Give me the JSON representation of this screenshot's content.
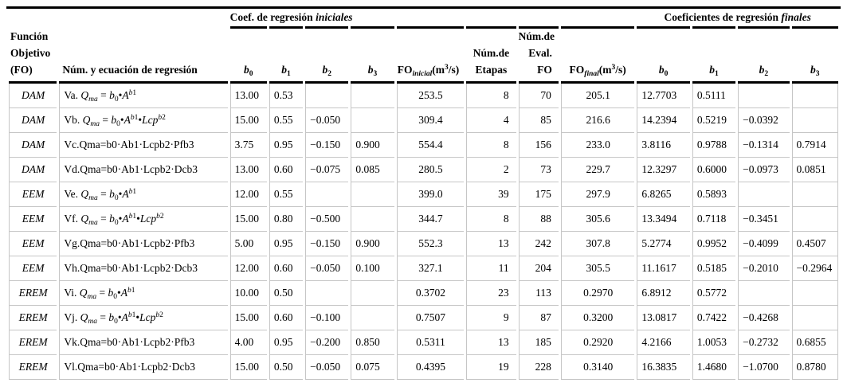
{
  "table": {
    "group_headers": {
      "initial": "Coef. de regresión <i>iniciales</i>",
      "final": "Coeficientes de regresión <i>finales</i>"
    },
    "col_headers": {
      "fo": "Función<br>Objetivo<br>(FO)",
      "eq": "Núm. y ecuación de regresión",
      "b0i": "<i>b</i><sub>0</sub>",
      "b1i": "<i>b</i><sub>1</sub>",
      "b2i": "<i>b</i><sub>2</sub>",
      "b3i": "<i>b</i><sub>3</sub>",
      "fo_ini": "FO<sub><i>inicial</i></sub>(m<sup>3</sup>/s)",
      "etapas": "Núm.de<br>Etapas",
      "eval_fo": "Núm.de<br>Eval.<br>FO",
      "fo_fin": "FO<sub><i>final</i></sub>(m<sup>3</sup>/s)",
      "b0f": "<i>b</i><sub>0</sub>",
      "b1f": "<i>b</i><sub>1</sub>",
      "b2f": "<i>b</i><sub>2</sub>",
      "b3f": "<i>b</i><sub>3</sub>"
    },
    "rows": [
      {
        "fo": "DAM",
        "eq": "Va. <i>Q<sub>ma</sub></i> = <i>b</i><sub>0</sub>•<i>A</i><sup><i>b</i>1</sup>",
        "b0i": "13.00",
        "b1i": "0.53",
        "b2i": "",
        "b3i": "",
        "fo_ini": "253.5",
        "etapas": "8",
        "eval_fo": "70",
        "fo_fin": "205.1",
        "b0f": "12.7703",
        "b1f": "0.5111",
        "b2f": "",
        "b3f": ""
      },
      {
        "fo": "DAM",
        "eq": "Vb. <i>Q<sub>ma</sub></i> = <i>b</i><sub>0</sub>•<i>A</i><sup><i>b</i>1</sup>•<i>Lcp</i><sup><i>b</i>2</sup>",
        "b0i": "15.00",
        "b1i": "0.55",
        "b2i": "−0.050",
        "b3i": "",
        "fo_ini": "309.4",
        "etapas": "4",
        "eval_fo": "85",
        "fo_fin": "216.6",
        "b0f": "14.2394",
        "b1f": "0.5219",
        "b2f": "−0.0392",
        "b3f": ""
      },
      {
        "fo": "DAM",
        "eq": "Vc.Qma=b0·Ab1·Lcpb2·Pfb3",
        "b0i": "3.75",
        "b1i": "0.95",
        "b2i": "−0.150",
        "b3i": "0.900",
        "fo_ini": "554.4",
        "etapas": "8",
        "eval_fo": "156",
        "fo_fin": "233.0",
        "b0f": "3.8116",
        "b1f": "0.9788",
        "b2f": "−0.1314",
        "b3f": "0.7914"
      },
      {
        "fo": "DAM",
        "eq": "Vd.Qma=b0·Ab1·Lcpb2·Dcb3",
        "b0i": "13.00",
        "b1i": "0.60",
        "b2i": "−0.075",
        "b3i": "0.085",
        "fo_ini": "280.5",
        "etapas": "2",
        "eval_fo": "73",
        "fo_fin": "229.7",
        "b0f": "12.3297",
        "b1f": "0.6000",
        "b2f": "−0.0973",
        "b3f": "0.0851"
      },
      {
        "fo": "EEM",
        "eq": "Ve. <i>Q<sub>ma</sub></i> = <i>b</i><sub>0</sub>•<i>A</i><sup><i>b</i>1</sup>",
        "b0i": "12.00",
        "b1i": "0.55",
        "b2i": "",
        "b3i": "",
        "fo_ini": "399.0",
        "etapas": "39",
        "eval_fo": "175",
        "fo_fin": "297.9",
        "b0f": "6.8265",
        "b1f": "0.5893",
        "b2f": "",
        "b3f": ""
      },
      {
        "fo": "EEM",
        "eq": "Vf. <i>Q<sub>ma</sub></i> = <i>b</i><sub>0</sub>•<i>A</i><sup><i>b</i>1</sup>•<i>Lcp</i><sup><i>b</i>2</sup>",
        "b0i": "15.00",
        "b1i": "0.80",
        "b2i": "−0.500",
        "b3i": "",
        "fo_ini": "344.7",
        "etapas": "8",
        "eval_fo": "88",
        "fo_fin": "305.6",
        "b0f": "13.3494",
        "b1f": "0.7118",
        "b2f": "−0.3451",
        "b3f": ""
      },
      {
        "fo": "EEM",
        "eq": "Vg.Qma=b0·Ab1·Lcpb2·Pfb3",
        "b0i": "5.00",
        "b1i": "0.95",
        "b2i": "−0.150",
        "b3i": "0.900",
        "fo_ini": "552.3",
        "etapas": "13",
        "eval_fo": "242",
        "fo_fin": "307.8",
        "b0f": "5.2774",
        "b1f": "0.9952",
        "b2f": "−0.4099",
        "b3f": "0.4507"
      },
      {
        "fo": "EEM",
        "eq": "Vh.Qma=b0·Ab1·Lcpb2·Dcb3",
        "b0i": "12.00",
        "b1i": "0.60",
        "b2i": "−0.050",
        "b3i": "0.100",
        "fo_ini": "327.1",
        "etapas": "11",
        "eval_fo": "204",
        "fo_fin": "305.5",
        "b0f": "11.1617",
        "b1f": "0.5185",
        "b2f": "−0.2010",
        "b3f": "−0.2964"
      },
      {
        "fo": "EREM",
        "eq": "Vi. <i>Q<sub>ma</sub></i> = <i>b</i><sub>0</sub>•<i>A</i><sup><i>b</i>1</sup>",
        "b0i": "10.00",
        "b1i": "0.50",
        "b2i": "",
        "b3i": "",
        "fo_ini": "0.3702",
        "etapas": "23",
        "eval_fo": "113",
        "fo_fin": "0.2970",
        "b0f": "6.8912",
        "b1f": "0.5772",
        "b2f": "",
        "b3f": ""
      },
      {
        "fo": "EREM",
        "eq": "Vj. <i>Q<sub>ma</sub></i> = <i>b</i><sub>0</sub>•<i>A</i><sup><i>b</i>1</sup>•<i>Lcp</i><sup><i>b</i>2</sup>",
        "b0i": "15.00",
        "b1i": "0.60",
        "b2i": "−0.100",
        "b3i": "",
        "fo_ini": "0.7507",
        "etapas": "9",
        "eval_fo": "87",
        "fo_fin": "0.3200",
        "b0f": "13.0817",
        "b1f": "0.7422",
        "b2f": "−0.4268",
        "b3f": ""
      },
      {
        "fo": "EREM",
        "eq": "Vk.Qma=b0·Ab1·Lcpb2·Pfb3",
        "b0i": "4.00",
        "b1i": "0.95",
        "b2i": "−0.200",
        "b3i": "0.850",
        "fo_ini": "0.5311",
        "etapas": "13",
        "eval_fo": "185",
        "fo_fin": "0.2920",
        "b0f": "4.2166",
        "b1f": "1.0053",
        "b2f": "−0.2732",
        "b3f": "0.6855"
      },
      {
        "fo": "EREM",
        "eq": "Vl.Qma=b0·Ab1·Lcpb2·Dcb3",
        "b0i": "15.00",
        "b1i": "0.50",
        "b2i": "−0.050",
        "b3i": "0.075",
        "fo_ini": "0.4395",
        "etapas": "19",
        "eval_fo": "228",
        "fo_fin": "0.3140",
        "b0f": "16.3835",
        "b1f": "1.4680",
        "b2f": "−1.0700",
        "b3f": "0.8780"
      }
    ]
  }
}
